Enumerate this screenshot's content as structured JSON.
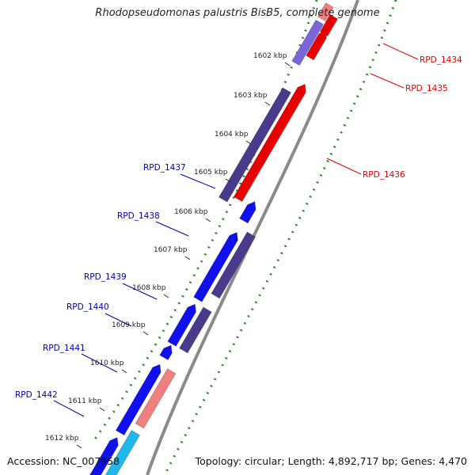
{
  "title": "Rhodopseudomonas palustris BisB5, complete genome",
  "footer": {
    "accession": "Accession: NC_007958",
    "topology": "Topology: circular; Length: 4,892,717 bp; Genes: 4,470"
  },
  "ticks": [
    "1602 kbp",
    "1603 kbp",
    "1604 kbp",
    "1605 kbp",
    "1606 kbp",
    "1607 kbp",
    "1608 kbp",
    "1609 kbp",
    "1610 kbp",
    "1611 kbp",
    "1612 kbp"
  ],
  "genes_right": [
    {
      "id": "RPD_1434",
      "color": "#e00000"
    },
    {
      "id": "RPD_1435",
      "color": "#e00000"
    },
    {
      "id": "RPD_1436",
      "color": "#e00000"
    }
  ],
  "genes_left": [
    {
      "id": "RPD_1437",
      "color": "#0000aa"
    },
    {
      "id": "RPD_1438",
      "color": "#0000aa"
    },
    {
      "id": "RPD_1439",
      "color": "#0000aa"
    },
    {
      "id": "RPD_1440",
      "color": "#0000aa"
    },
    {
      "id": "RPD_1441",
      "color": "#0000aa"
    },
    {
      "id": "RPD_1442",
      "color": "#0000aa"
    }
  ],
  "colors": {
    "forward_cds": "#1010ee",
    "reverse_cds": "#e80000",
    "purple_cds": "#4a3a8c",
    "light_purple_cds": "#7a66d8",
    "pink_cds": "#f08080",
    "cyan_cds": "#20b8e8",
    "backbone": "#8a8a8a",
    "gc_dots": "#2a8a2a"
  }
}
